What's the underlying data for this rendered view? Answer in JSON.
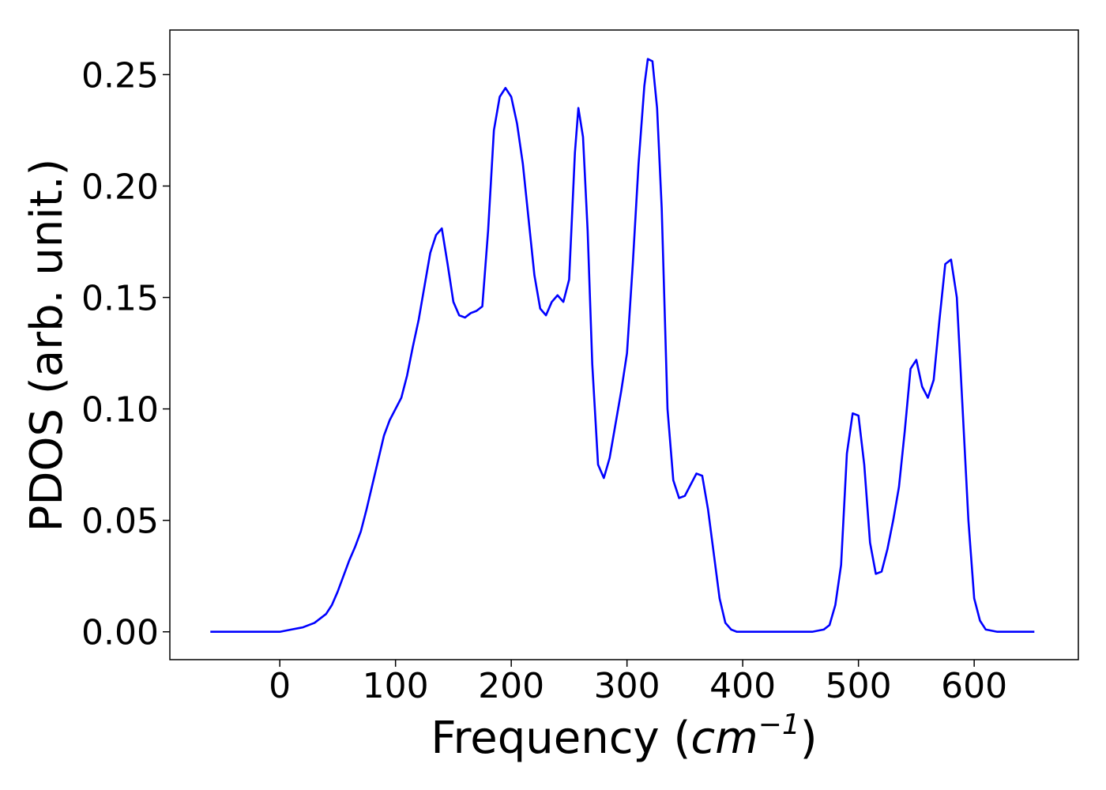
{
  "chart_data": {
    "type": "line",
    "title": "",
    "xlabel": "Frequency (",
    "xlabel_math": "cm",
    "xlabel_sup": "−1",
    "xlabel_end": ")",
    "ylabel": "PDOS (arb. unit.)",
    "xlim": [
      -95,
      690
    ],
    "ylim": [
      -0.0125,
      0.27
    ],
    "xticks": [
      0,
      100,
      200,
      300,
      400,
      500,
      600
    ],
    "xtick_labels": [
      "0",
      "100",
      "200",
      "300",
      "400",
      "500",
      "600"
    ],
    "yticks": [
      0.0,
      0.05,
      0.1,
      0.15,
      0.2,
      0.25
    ],
    "ytick_labels": [
      "0.00",
      "0.05",
      "0.10",
      "0.15",
      "0.20",
      "0.25"
    ],
    "grid": false,
    "legend": "none",
    "series": [
      {
        "color": "#0000ff",
        "x": [
          -60,
          -10,
          0,
          10,
          20,
          30,
          40,
          45,
          50,
          55,
          60,
          65,
          70,
          75,
          80,
          85,
          90,
          95,
          100,
          105,
          110,
          115,
          120,
          125,
          130,
          135,
          140,
          145,
          150,
          155,
          160,
          165,
          170,
          175,
          180,
          185,
          190,
          195,
          200,
          205,
          210,
          215,
          220,
          225,
          230,
          235,
          240,
          245,
          250,
          255,
          258,
          262,
          266,
          270,
          275,
          280,
          285,
          290,
          295,
          300,
          305,
          310,
          315,
          318,
          322,
          326,
          330,
          335,
          340,
          345,
          350,
          355,
          360,
          365,
          370,
          375,
          380,
          385,
          390,
          395,
          400,
          420,
          440,
          460,
          470,
          475,
          480,
          485,
          490,
          495,
          500,
          505,
          510,
          515,
          520,
          525,
          530,
          535,
          540,
          545,
          550,
          555,
          560,
          565,
          570,
          575,
          580,
          585,
          590,
          595,
          600,
          605,
          610,
          620,
          640,
          652
        ],
        "y": [
          0.0,
          0.0,
          0.0,
          0.001,
          0.002,
          0.004,
          0.008,
          0.012,
          0.018,
          0.025,
          0.032,
          0.038,
          0.045,
          0.055,
          0.066,
          0.077,
          0.088,
          0.095,
          0.1,
          0.105,
          0.115,
          0.128,
          0.14,
          0.155,
          0.17,
          0.178,
          0.181,
          0.165,
          0.148,
          0.142,
          0.141,
          0.143,
          0.144,
          0.146,
          0.18,
          0.225,
          0.24,
          0.244,
          0.24,
          0.228,
          0.21,
          0.185,
          0.16,
          0.145,
          0.142,
          0.148,
          0.151,
          0.148,
          0.158,
          0.215,
          0.235,
          0.222,
          0.18,
          0.12,
          0.075,
          0.069,
          0.078,
          0.093,
          0.108,
          0.125,
          0.165,
          0.21,
          0.245,
          0.257,
          0.256,
          0.235,
          0.19,
          0.1,
          0.068,
          0.06,
          0.061,
          0.066,
          0.071,
          0.07,
          0.055,
          0.035,
          0.015,
          0.004,
          0.001,
          0.0,
          0.0,
          0.0,
          0.0,
          0.0,
          0.001,
          0.003,
          0.012,
          0.03,
          0.08,
          0.098,
          0.097,
          0.075,
          0.04,
          0.026,
          0.027,
          0.037,
          0.05,
          0.065,
          0.09,
          0.118,
          0.122,
          0.11,
          0.105,
          0.113,
          0.14,
          0.165,
          0.167,
          0.15,
          0.1,
          0.05,
          0.015,
          0.005,
          0.001,
          0.0,
          0.0,
          0.0
        ]
      }
    ]
  }
}
